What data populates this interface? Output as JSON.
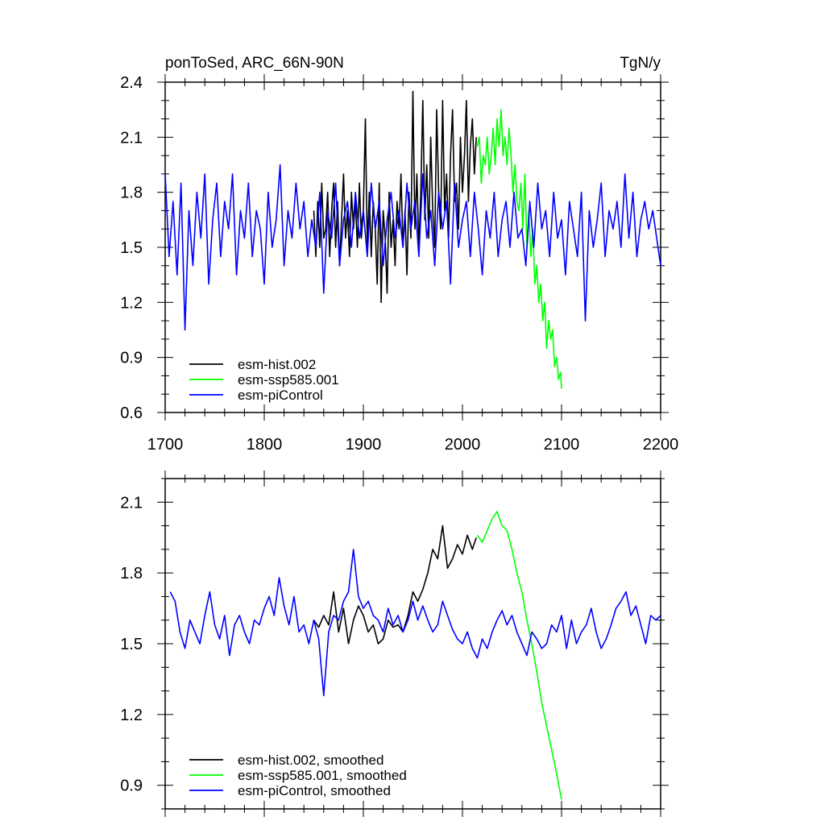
{
  "chart_data": [
    {
      "type": "line",
      "title": "ponToSed, ARC_66N-90N",
      "units": "TgN/y",
      "xlim": [
        1700,
        2200
      ],
      "ylim": [
        0.6,
        2.4
      ],
      "xticks": [
        1700,
        1800,
        1900,
        2000,
        2100,
        2200
      ],
      "xtick_labels": [
        "1700",
        "1800",
        "1900",
        "2000",
        "2100",
        "2200"
      ],
      "yticks": [
        0.6,
        0.9,
        1.2,
        1.5,
        1.8,
        2.1,
        2.4
      ],
      "ytick_labels": [
        "0.6",
        "0.9",
        "1.2",
        "1.5",
        "1.8",
        "2.1",
        "2.4"
      ],
      "legend_position": "bottom-left",
      "series": [
        {
          "name": "esm-hist.002",
          "color": "#000000",
          "x": [
            1850,
            1852,
            1854,
            1856,
            1858,
            1860,
            1862,
            1864,
            1866,
            1868,
            1870,
            1872,
            1874,
            1876,
            1878,
            1880,
            1882,
            1884,
            1886,
            1888,
            1890,
            1892,
            1894,
            1896,
            1898,
            1900,
            1902,
            1904,
            1906,
            1908,
            1910,
            1912,
            1914,
            1916,
            1918,
            1920,
            1922,
            1924,
            1926,
            1928,
            1930,
            1932,
            1934,
            1936,
            1938,
            1940,
            1942,
            1944,
            1946,
            1948,
            1950,
            1952,
            1954,
            1956,
            1958,
            1960,
            1962,
            1964,
            1966,
            1968,
            1970,
            1972,
            1974,
            1976,
            1978,
            1980,
            1982,
            1984,
            1986,
            1988,
            1990,
            1992,
            1994,
            1996,
            1998,
            2000,
            2002,
            2004,
            2006,
            2008,
            2010,
            2012,
            2014
          ],
          "y": [
            1.7,
            1.45,
            1.75,
            1.5,
            1.85,
            1.55,
            1.6,
            1.8,
            1.45,
            1.7,
            1.85,
            1.5,
            1.75,
            1.4,
            1.65,
            1.9,
            1.55,
            1.7,
            1.45,
            1.8,
            1.6,
            1.75,
            1.5,
            1.85,
            1.55,
            1.7,
            2.2,
            1.5,
            1.8,
            1.45,
            1.75,
            1.6,
            1.3,
            1.85,
            1.2,
            1.7,
            1.55,
            1.25,
            1.8,
            1.5,
            1.65,
            1.4,
            1.75,
            1.6,
            1.9,
            1.5,
            1.7,
            1.35,
            1.8,
            1.55,
            2.35,
            1.6,
            1.9,
            1.5,
            1.8,
            2.3,
            1.65,
            1.95,
            1.55,
            2.1,
            1.7,
            1.5,
            2.25,
            1.8,
            1.6,
            2.3,
            1.7,
            1.9,
            1.55,
            2.0,
            2.25,
            1.75,
            1.85,
            1.6,
            2.1,
            1.8,
            2.0,
            2.3,
            1.75,
            2.05,
            2.2,
            1.9,
            2.1
          ]
        },
        {
          "name": "esm-ssp585.001",
          "color": "#00ff00",
          "x": [
            2015,
            2017,
            2019,
            2021,
            2023,
            2025,
            2027,
            2029,
            2031,
            2033,
            2035,
            2037,
            2039,
            2041,
            2043,
            2045,
            2047,
            2049,
            2051,
            2053,
            2055,
            2057,
            2059,
            2061,
            2063,
            2065,
            2067,
            2069,
            2071,
            2073,
            2075,
            2077,
            2079,
            2081,
            2083,
            2085,
            2087,
            2089,
            2091,
            2093,
            2095,
            2097,
            2099,
            2100
          ],
          "y": [
            2.05,
            2.1,
            1.85,
            2.0,
            1.95,
            2.1,
            1.9,
            2.0,
            2.15,
            1.95,
            2.2,
            2.05,
            2.25,
            2.0,
            2.1,
            1.95,
            2.15,
            2.0,
            1.8,
            1.95,
            1.75,
            1.7,
            1.85,
            1.6,
            1.9,
            1.5,
            1.7,
            1.45,
            1.6,
            1.3,
            1.4,
            1.2,
            1.3,
            1.1,
            1.2,
            0.95,
            1.1,
            1.0,
            1.05,
            0.85,
            0.9,
            0.78,
            0.82,
            0.73
          ]
        },
        {
          "name": "esm-piControl",
          "color": "#0000ff",
          "x": [
            1700,
            1704,
            1708,
            1712,
            1716,
            1720,
            1724,
            1728,
            1732,
            1736,
            1740,
            1744,
            1748,
            1752,
            1756,
            1760,
            1764,
            1768,
            1772,
            1776,
            1780,
            1784,
            1788,
            1792,
            1796,
            1800,
            1804,
            1808,
            1812,
            1816,
            1820,
            1824,
            1828,
            1832,
            1836,
            1840,
            1844,
            1848,
            1852,
            1856,
            1860,
            1864,
            1868,
            1872,
            1876,
            1880,
            1884,
            1888,
            1892,
            1896,
            1900,
            1904,
            1908,
            1912,
            1916,
            1920,
            1924,
            1928,
            1932,
            1936,
            1940,
            1944,
            1948,
            1952,
            1956,
            1960,
            1964,
            1968,
            1972,
            1976,
            1980,
            1984,
            1988,
            1992,
            1996,
            2000,
            2004,
            2008,
            2012,
            2016,
            2020,
            2024,
            2028,
            2032,
            2036,
            2040,
            2044,
            2048,
            2052,
            2056,
            2060,
            2064,
            2068,
            2072,
            2076,
            2080,
            2084,
            2088,
            2092,
            2096,
            2100,
            2104,
            2108,
            2112,
            2116,
            2120,
            2124,
            2128,
            2132,
            2136,
            2140,
            2144,
            2148,
            2152,
            2156,
            2160,
            2164,
            2168,
            2172,
            2176,
            2180,
            2184,
            2188,
            2192,
            2196,
            2200
          ],
          "y": [
            1.9,
            1.45,
            1.75,
            1.35,
            1.85,
            1.05,
            1.7,
            1.4,
            1.8,
            1.55,
            1.9,
            1.3,
            1.65,
            1.85,
            1.45,
            1.75,
            1.6,
            1.9,
            1.35,
            1.7,
            1.55,
            1.85,
            1.45,
            1.7,
            1.6,
            1.3,
            1.8,
            1.5,
            1.65,
            1.95,
            1.4,
            1.7,
            1.55,
            1.85,
            1.6,
            1.75,
            1.45,
            1.65,
            1.5,
            1.8,
            1.25,
            1.7,
            1.55,
            1.85,
            1.4,
            1.65,
            1.75,
            1.5,
            1.8,
            1.55,
            1.7,
            1.45,
            1.85,
            1.6,
            1.75,
            1.4,
            1.65,
            1.8,
            1.55,
            1.7,
            1.5,
            1.85,
            1.6,
            1.75,
            1.45,
            1.9,
            1.55,
            1.7,
            1.4,
            1.8,
            1.6,
            1.75,
            1.3,
            1.85,
            1.5,
            1.65,
            1.75,
            1.45,
            1.8,
            1.6,
            1.35,
            1.7,
            1.55,
            1.8,
            1.45,
            1.65,
            1.75,
            1.5,
            1.8,
            1.55,
            1.6,
            1.4,
            1.75,
            1.5,
            1.85,
            1.6,
            1.7,
            1.45,
            1.8,
            1.55,
            1.65,
            1.35,
            1.75,
            1.6,
            1.45,
            1.8,
            1.1,
            1.7,
            1.5,
            1.65,
            1.85,
            1.45,
            1.7,
            1.6,
            1.75,
            1.5,
            1.9,
            1.55,
            1.8,
            1.45,
            1.65,
            1.75,
            1.6,
            1.7,
            1.55,
            1.4
          ]
        }
      ]
    },
    {
      "type": "line",
      "xlim": [
        1700,
        2200
      ],
      "ylim": [
        0.8,
        2.2
      ],
      "xticks": [
        1700,
        1800,
        1900,
        2000,
        2100,
        2200
      ],
      "yticks": [
        0.9,
        1.2,
        1.5,
        1.8,
        2.1
      ],
      "ytick_labels": [
        "0.9",
        "1.2",
        "1.5",
        "1.8",
        "2.1"
      ],
      "legend_position": "bottom-left",
      "series": [
        {
          "name": "esm-hist.002, smoothed",
          "color": "#000000",
          "x": [
            1850,
            1855,
            1860,
            1865,
            1870,
            1875,
            1880,
            1885,
            1890,
            1895,
            1900,
            1905,
            1910,
            1915,
            1920,
            1925,
            1930,
            1935,
            1940,
            1945,
            1950,
            1955,
            1960,
            1965,
            1970,
            1975,
            1980,
            1985,
            1990,
            1995,
            2000,
            2005,
            2010,
            2014
          ],
          "y": [
            1.6,
            1.57,
            1.62,
            1.58,
            1.72,
            1.55,
            1.65,
            1.5,
            1.6,
            1.66,
            1.62,
            1.55,
            1.58,
            1.5,
            1.52,
            1.6,
            1.57,
            1.58,
            1.55,
            1.62,
            1.72,
            1.68,
            1.73,
            1.8,
            1.9,
            1.86,
            2.0,
            1.82,
            1.86,
            1.92,
            1.88,
            1.96,
            1.9,
            1.95
          ]
        },
        {
          "name": "esm-ssp585.001, smoothed",
          "color": "#00ff00",
          "x": [
            2015,
            2020,
            2025,
            2030,
            2035,
            2040,
            2045,
            2050,
            2055,
            2060,
            2065,
            2070,
            2075,
            2080,
            2085,
            2090,
            2095,
            2100
          ],
          "y": [
            1.96,
            1.93,
            1.98,
            2.03,
            2.06,
            2.0,
            1.98,
            1.9,
            1.8,
            1.72,
            1.6,
            1.5,
            1.38,
            1.25,
            1.15,
            1.05,
            0.95,
            0.84
          ]
        },
        {
          "name": "esm-piControl, smoothed",
          "color": "#0000ff",
          "x": [
            1705,
            1710,
            1715,
            1720,
            1725,
            1730,
            1735,
            1740,
            1745,
            1750,
            1755,
            1760,
            1765,
            1770,
            1775,
            1780,
            1785,
            1790,
            1795,
            1800,
            1805,
            1810,
            1815,
            1820,
            1825,
            1830,
            1835,
            1840,
            1845,
            1850,
            1855,
            1860,
            1865,
            1870,
            1875,
            1880,
            1885,
            1890,
            1895,
            1900,
            1905,
            1910,
            1915,
            1920,
            1925,
            1930,
            1935,
            1940,
            1945,
            1950,
            1955,
            1960,
            1965,
            1970,
            1975,
            1980,
            1985,
            1990,
            1995,
            2000,
            2005,
            2010,
            2015,
            2020,
            2025,
            2030,
            2035,
            2040,
            2045,
            2050,
            2055,
            2060,
            2065,
            2070,
            2075,
            2080,
            2085,
            2090,
            2095,
            2100,
            2105,
            2110,
            2115,
            2120,
            2125,
            2130,
            2135,
            2140,
            2145,
            2150,
            2155,
            2160,
            2165,
            2170,
            2175,
            2180,
            2185,
            2190,
            2195,
            2200
          ],
          "y": [
            1.72,
            1.68,
            1.55,
            1.48,
            1.6,
            1.55,
            1.5,
            1.62,
            1.72,
            1.58,
            1.52,
            1.62,
            1.45,
            1.58,
            1.62,
            1.55,
            1.5,
            1.6,
            1.58,
            1.65,
            1.7,
            1.62,
            1.78,
            1.66,
            1.58,
            1.7,
            1.55,
            1.58,
            1.5,
            1.6,
            1.52,
            1.28,
            1.55,
            1.62,
            1.6,
            1.68,
            1.72,
            1.9,
            1.7,
            1.65,
            1.68,
            1.62,
            1.6,
            1.55,
            1.65,
            1.58,
            1.62,
            1.55,
            1.6,
            1.68,
            1.6,
            1.66,
            1.6,
            1.55,
            1.58,
            1.68,
            1.62,
            1.56,
            1.52,
            1.5,
            1.55,
            1.48,
            1.44,
            1.52,
            1.48,
            1.55,
            1.6,
            1.64,
            1.58,
            1.62,
            1.55,
            1.5,
            1.45,
            1.55,
            1.52,
            1.48,
            1.5,
            1.58,
            1.55,
            1.62,
            1.48,
            1.6,
            1.5,
            1.55,
            1.58,
            1.65,
            1.55,
            1.48,
            1.52,
            1.58,
            1.65,
            1.68,
            1.72,
            1.62,
            1.66,
            1.58,
            1.5,
            1.62,
            1.6,
            1.62
          ]
        }
      ]
    }
  ]
}
